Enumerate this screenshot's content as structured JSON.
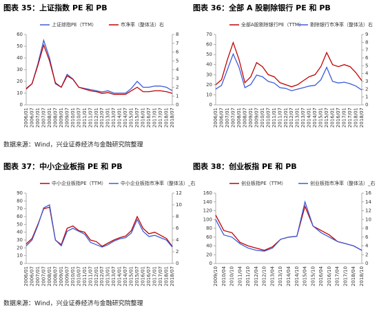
{
  "chart_data": [
    {
      "type": "line",
      "title": "图表 35：上证指数 PE 和 PB",
      "categories": [
        "2006/01",
        "2006/07",
        "2007/01",
        "2007/07",
        "2008/01",
        "2008/07",
        "2009/01",
        "2009/07",
        "2010/01",
        "2010/07",
        "2011/01",
        "2011/07",
        "2012/01",
        "2012/07",
        "2013/01",
        "2013/07",
        "2014/01",
        "2014/07",
        "2015/01",
        "2015/07",
        "2016/01",
        "2016/07",
        "2017/01",
        "2017/07",
        "2018/01",
        "2018/07"
      ],
      "series": [
        {
          "name": "上证综指PE（TTM）",
          "color": "#3a5bd9",
          "values": [
            14,
            18,
            35,
            55,
            40,
            18,
            15,
            26,
            22,
            15,
            14,
            13,
            12,
            11,
            12,
            10,
            10,
            10,
            14,
            20,
            15,
            15,
            16,
            16,
            15,
            12
          ]
        },
        {
          "name": "市净率（整体法）右",
          "color": "#c00000",
          "axis": "y2",
          "values": [
            1.8,
            2.4,
            4.5,
            6.8,
            5.0,
            2.5,
            2.0,
            3.3,
            2.9,
            2.0,
            1.8,
            1.6,
            1.5,
            1.3,
            1.4,
            1.2,
            1.2,
            1.2,
            1.6,
            2.0,
            1.5,
            1.5,
            1.6,
            1.6,
            1.5,
            1.3
          ]
        }
      ],
      "ylim": [
        0,
        60
      ],
      "yticks": [
        0,
        10,
        20,
        30,
        40,
        50,
        60
      ],
      "y2lim": [
        0,
        8
      ],
      "y2ticks": [
        0,
        1,
        2,
        3,
        4,
        5,
        6,
        7,
        8
      ]
    },
    {
      "type": "line",
      "title": "图表 36：全部 A 股剔除银行 PE 和 PB",
      "categories": [
        "2006/01",
        "2006/07",
        "2007/01",
        "2007/07",
        "2008/01",
        "2008/07",
        "2009/01",
        "2009/07",
        "2010/01",
        "2010/07",
        "2011/01",
        "2011/07",
        "2012/01",
        "2012/07",
        "2013/01",
        "2013/07",
        "2014/01",
        "2014/07",
        "2015/01",
        "2015/07",
        "2016/01",
        "2016/07",
        "2017/01",
        "2017/07",
        "2018/01",
        "2018/07"
      ],
      "series": [
        {
          "name": "全部A股剔除银行PE（TTM）",
          "color": "#c00000",
          "values": [
            20,
            25,
            45,
            62,
            45,
            22,
            28,
            42,
            38,
            30,
            28,
            22,
            20,
            18,
            20,
            24,
            28,
            30,
            38,
            52,
            40,
            38,
            40,
            38,
            32,
            24
          ]
        },
        {
          "name": "剔除银行市净率（整体法）右",
          "color": "#3a5bd9",
          "axis": "y2",
          "values": [
            2.0,
            2.5,
            4.5,
            6.5,
            4.8,
            2.2,
            2.6,
            3.8,
            3.6,
            3.0,
            2.8,
            2.2,
            2.1,
            1.8,
            2.0,
            2.2,
            2.4,
            2.5,
            3.2,
            4.8,
            3.0,
            2.8,
            2.9,
            2.7,
            2.4,
            1.9
          ]
        }
      ],
      "ylim": [
        0,
        70
      ],
      "yticks": [
        0,
        10,
        20,
        30,
        40,
        50,
        60,
        70
      ],
      "y2lim": [
        0,
        9
      ],
      "y2ticks": [
        0,
        1,
        2,
        3,
        4,
        5,
        6,
        7,
        8,
        9
      ]
    },
    {
      "type": "line",
      "title": "图表 37：中小企业板指 PE 和 PB",
      "categories": [
        "2006/01",
        "2006/07",
        "2007/01",
        "2007/07",
        "2008/01",
        "2008/07",
        "2009/01",
        "2009/07",
        "2010/01",
        "2010/07",
        "2011/01",
        "2011/07",
        "2012/01",
        "2012/07",
        "2013/01",
        "2013/07",
        "2014/01",
        "2014/07",
        "2015/01",
        "2015/07",
        "2016/01",
        "2016/07",
        "2017/01",
        "2017/07",
        "2018/01",
        "2018/07"
      ],
      "series": [
        {
          "name": "中小企业板指PE（TTM）",
          "color": "#c00000",
          "values": [
            25,
            32,
            50,
            70,
            72,
            30,
            24,
            45,
            48,
            42,
            40,
            30,
            28,
            22,
            26,
            30,
            33,
            35,
            42,
            60,
            45,
            38,
            40,
            36,
            32,
            22
          ]
        },
        {
          "name": "中小企业板指市净率（整体法）_右",
          "color": "#3a5bd9",
          "axis": "y2",
          "values": [
            3.0,
            4.0,
            6.5,
            9.5,
            10,
            4.0,
            3.0,
            5.5,
            6.0,
            5.5,
            5.0,
            3.6,
            3.2,
            2.8,
            3.2,
            3.8,
            4.2,
            4.4,
            5.2,
            7.5,
            5.5,
            4.6,
            4.8,
            4.4,
            4.0,
            2.8
          ]
        }
      ],
      "ylim": [
        0,
        90
      ],
      "yticks": [
        0,
        10,
        20,
        30,
        40,
        50,
        60,
        70,
        80,
        90
      ],
      "y2lim": [
        0,
        12
      ],
      "y2ticks": [
        0,
        2,
        4,
        6,
        8,
        10,
        12
      ]
    },
    {
      "type": "line",
      "title": "图表 38：创业板指 PE 和 PB",
      "categories": [
        "2009/10",
        "2010/04",
        "2010/10",
        "2011/04",
        "2011/10",
        "2012/04",
        "2012/10",
        "2013/04",
        "2013/10",
        "2014/04",
        "2014/10",
        "2015/04",
        "2015/10",
        "2016/04",
        "2016/10",
        "2017/04",
        "2017/10",
        "2018/04",
        "2018/10"
      ],
      "series": [
        {
          "name": "创业板指PE（TTM）",
          "color": "#c00000",
          "values": [
            110,
            75,
            70,
            48,
            40,
            35,
            30,
            38,
            55,
            60,
            62,
            130,
            85,
            75,
            65,
            50,
            45,
            40,
            30
          ]
        },
        {
          "name": "创业板指市净率（整体法）_右",
          "color": "#3a5bd9",
          "axis": "y2",
          "values": [
            10,
            6.5,
            6.0,
            4.5,
            3.5,
            3.0,
            2.8,
            3.5,
            5.5,
            6.0,
            6.2,
            14,
            8.5,
            7.0,
            6.0,
            5.0,
            4.5,
            4.0,
            3.0
          ]
        }
      ],
      "ylim": [
        0,
        160
      ],
      "yticks": [
        0,
        20,
        40,
        60,
        80,
        100,
        120,
        140,
        160
      ],
      "y2lim": [
        0,
        16
      ],
      "y2ticks": [
        0,
        2,
        4,
        6,
        8,
        10,
        12,
        14,
        16
      ]
    }
  ],
  "notes": [
    "数据来源：Wind，兴业证券经济与金融研究院整理",
    "数据来源：Wind，兴业证券经济与金融研究院整理"
  ]
}
